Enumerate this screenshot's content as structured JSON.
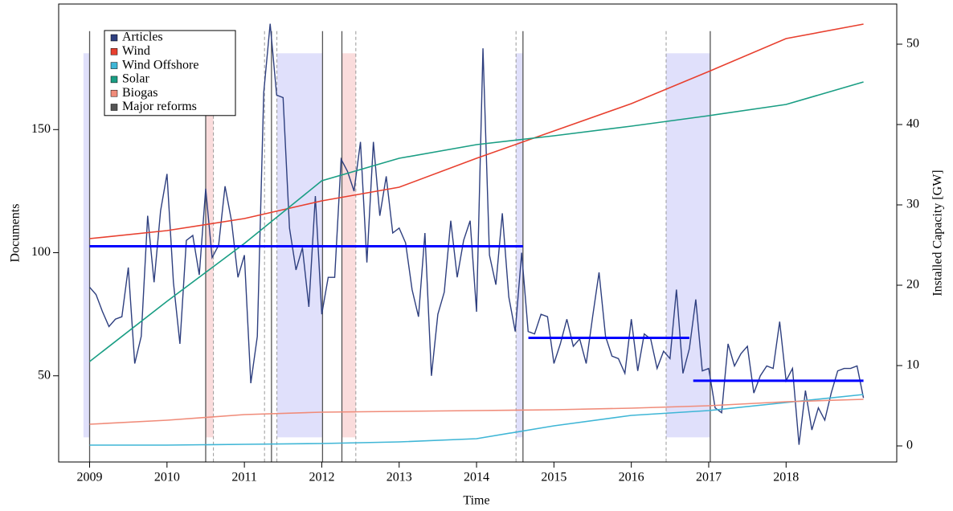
{
  "chart_data": {
    "type": "line",
    "xlabel": "Time",
    "ylabel": "Documents",
    "y2label": "Installed Capacity [GW]",
    "xlim": [
      2008.6,
      2019.43
    ],
    "xticks": [
      2009,
      2010,
      2011,
      2012,
      2013,
      2014,
      2015,
      2016,
      2017,
      2018
    ],
    "ylim": [
      15,
      201
    ],
    "yticks": [
      50,
      100,
      150
    ],
    "y2lim": [
      -2,
      55
    ],
    "y2ticks": [
      0,
      10,
      20,
      30,
      40,
      50
    ],
    "legend": "upper left",
    "series": [
      {
        "name": "Articles",
        "color": "#2e3f7f",
        "axis": "y",
        "x": [
          2009,
          2009.083,
          2009.167,
          2009.25,
          2009.333,
          2009.417,
          2009.5,
          2009.583,
          2009.667,
          2009.75,
          2009.833,
          2009.917,
          2010,
          2010.083,
          2010.167,
          2010.25,
          2010.333,
          2010.417,
          2010.5,
          2010.583,
          2010.667,
          2010.75,
          2010.833,
          2010.917,
          2011,
          2011.083,
          2011.167,
          2011.25,
          2011.333,
          2011.417,
          2011.5,
          2011.583,
          2011.667,
          2011.75,
          2011.833,
          2011.917,
          2012,
          2012.083,
          2012.167,
          2012.25,
          2012.333,
          2012.417,
          2012.5,
          2012.583,
          2012.667,
          2012.75,
          2012.833,
          2012.917,
          2013,
          2013.083,
          2013.167,
          2013.25,
          2013.333,
          2013.417,
          2013.5,
          2013.583,
          2013.667,
          2013.75,
          2013.833,
          2013.917,
          2014,
          2014.083,
          2014.167,
          2014.25,
          2014.333,
          2014.417,
          2014.5,
          2014.583,
          2014.667,
          2014.75,
          2014.833,
          2014.917,
          2015,
          2015.083,
          2015.167,
          2015.25,
          2015.333,
          2015.417,
          2015.5,
          2015.583,
          2015.667,
          2015.75,
          2015.833,
          2015.917,
          2016,
          2016.083,
          2016.167,
          2016.25,
          2016.333,
          2016.417,
          2016.5,
          2016.583,
          2016.667,
          2016.75,
          2016.833,
          2016.917,
          2017,
          2017.083,
          2017.167,
          2017.25,
          2017.333,
          2017.417,
          2017.5,
          2017.583,
          2017.667,
          2017.75,
          2017.833,
          2017.917,
          2018,
          2018.083,
          2018.167,
          2018.25,
          2018.333,
          2018.417,
          2018.5,
          2018.583,
          2018.667,
          2018.75,
          2018.833,
          2018.917,
          2019
        ],
        "values": [
          86,
          83,
          76,
          70,
          73,
          74,
          94,
          55,
          66,
          115,
          88,
          117,
          132,
          88,
          63,
          105,
          107,
          91,
          126,
          98,
          103,
          127,
          113,
          90,
          99,
          47,
          66,
          165,
          193,
          164,
          163,
          110,
          93,
          102,
          78,
          123,
          75,
          90,
          90,
          138,
          133,
          125,
          145,
          96,
          145,
          115,
          131,
          108,
          110,
          104,
          85,
          74,
          108,
          50,
          75,
          84,
          113,
          90,
          105,
          113,
          76,
          183,
          99,
          87,
          116,
          82,
          68,
          100,
          68,
          67,
          75,
          74,
          55,
          63,
          73,
          62,
          65,
          55,
          74,
          92,
          66,
          58,
          57,
          51,
          73,
          52,
          67,
          65,
          53,
          60,
          57,
          85,
          51,
          61,
          81,
          52,
          53,
          37,
          35,
          63,
          54,
          59,
          62,
          43,
          50,
          54,
          53,
          72,
          48,
          53,
          22,
          44,
          28,
          37,
          32,
          43,
          52,
          53,
          53,
          54,
          41
        ]
      },
      {
        "name": "Wind",
        "color": "#e8402f",
        "axis": "y2",
        "x": [
          2009,
          2010,
          2011,
          2012,
          2013,
          2014,
          2015,
          2016,
          2017,
          2018,
          2019
        ],
        "values": [
          25.8,
          26.8,
          28.3,
          30.5,
          32.2,
          35.8,
          39.2,
          42.6,
          46.6,
          50.7,
          52.5
        ]
      },
      {
        "name": "Wind Offshore",
        "color": "#3fb6d6",
        "axis": "y2",
        "x": [
          2009,
          2010,
          2011,
          2012,
          2013,
          2014,
          2015,
          2016,
          2017,
          2018,
          2019
        ],
        "values": [
          0.1,
          0.1,
          0.2,
          0.3,
          0.5,
          0.9,
          2.5,
          3.8,
          4.4,
          5.4,
          6.4
        ]
      },
      {
        "name": "Solar",
        "color": "#1a9e84",
        "axis": "y2",
        "x": [
          2009,
          2010,
          2011,
          2012,
          2013,
          2014,
          2015,
          2016,
          2017,
          2018,
          2019
        ],
        "values": [
          10.5,
          18,
          25.2,
          33,
          35.8,
          37.5,
          38.6,
          39.8,
          41.1,
          42.5,
          45.3
        ]
      },
      {
        "name": "Biogas",
        "color": "#f08c7a",
        "axis": "y2",
        "x": [
          2009,
          2010,
          2011,
          2012,
          2013,
          2014,
          2015,
          2016,
          2017,
          2018,
          2019
        ],
        "values": [
          2.7,
          3.2,
          3.9,
          4.2,
          4.3,
          4.4,
          4.5,
          4.7,
          5.0,
          5.5,
          5.8
        ]
      }
    ],
    "reforms": {
      "name": "Major reforms",
      "color": "#555555",
      "x": [
        2009,
        2010.5,
        2011.35,
        2012.01,
        2012.26,
        2014.6,
        2017.02
      ],
      "dashed_x": [
        2010.6,
        2011.26,
        2011.42,
        2012.44,
        2014.51,
        2016.45
      ],
      "span": [
        15,
        190
      ]
    },
    "periods": {
      "span": [
        25,
        181
      ],
      "blue": {
        "color": "#e0e0fb",
        "ranges": [
          [
            2008.92,
            2009
          ],
          [
            2011.42,
            2012.01
          ],
          [
            2014.51,
            2014.6
          ],
          [
            2016.45,
            2017.02
          ]
        ]
      },
      "red": {
        "color": "#fadcdc",
        "ranges": [
          [
            2010.5,
            2010.6
          ],
          [
            2012.26,
            2012.44
          ]
        ]
      }
    },
    "means": {
      "color": "#0000ff",
      "segments": [
        {
          "x": [
            2009,
            2014.6
          ],
          "value": 102.6
        },
        {
          "x": [
            2014.67,
            2016.75
          ],
          "value": 65.4
        },
        {
          "x": [
            2016.8,
            2019
          ],
          "value": 48
        }
      ]
    }
  }
}
